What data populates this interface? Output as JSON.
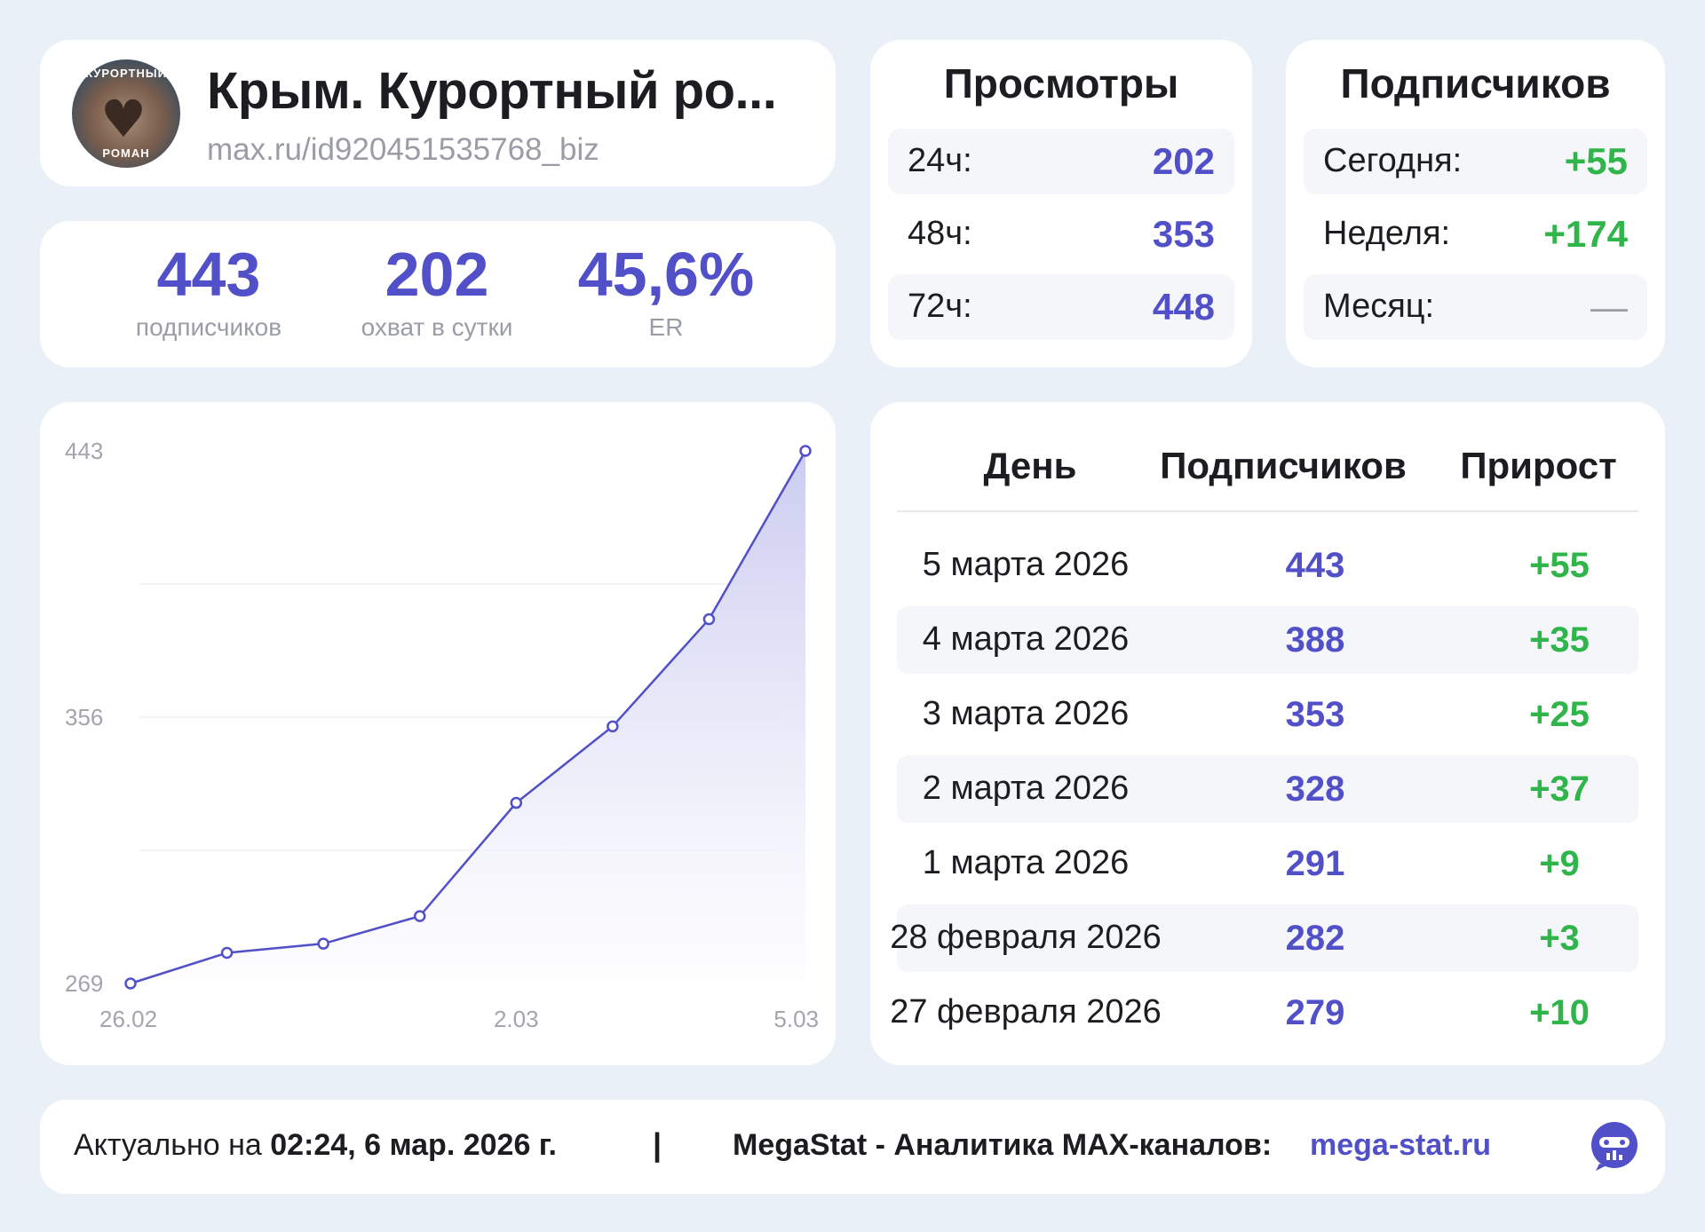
{
  "profile": {
    "title": "Крым. Курортный ро...",
    "url": "max.ru/id920451535768_biz",
    "avatar_text_top": "КУРОРТНЫЙ",
    "avatar_text_bottom": "РОМАН"
  },
  "stats": [
    {
      "value": "443",
      "label": "подписчиков"
    },
    {
      "value": "202",
      "label": "охват в сутки"
    },
    {
      "value": "45,6%",
      "label": "ER"
    }
  ],
  "views": {
    "title": "Просмотры",
    "rows": [
      {
        "label": "24ч:",
        "value": "202"
      },
      {
        "label": "48ч:",
        "value": "353"
      },
      {
        "label": "72ч:",
        "value": "448"
      }
    ]
  },
  "subs": {
    "title": "Подписчиков",
    "rows": [
      {
        "label": "Сегодня:",
        "value": "+55"
      },
      {
        "label": "Неделя:",
        "value": "+174"
      },
      {
        "label": "Месяц:",
        "value": "—"
      }
    ]
  },
  "chart_data": {
    "type": "area",
    "x": [
      "26.02",
      "27.02",
      "28.02",
      "1.03",
      "2.03",
      "3.03",
      "4.03",
      "5.03"
    ],
    "values": [
      269,
      279,
      282,
      291,
      328,
      353,
      388,
      443
    ],
    "ylim": [
      269,
      443
    ],
    "y_ticks": [
      "443",
      "356",
      "269"
    ],
    "x_tick_labels": [
      "26.02",
      "2.03",
      "5.03"
    ],
    "grid": true,
    "colors": {
      "line": "#5250c8",
      "fill_top": "#c9c9f0",
      "fill_bottom": "#ffffff"
    }
  },
  "table": {
    "headers": [
      "День",
      "Подписчиков",
      "Прирост"
    ],
    "rows": [
      {
        "day": "5 марта 2026",
        "subs": "443",
        "delta": "+55"
      },
      {
        "day": "4 марта 2026",
        "subs": "388",
        "delta": "+35"
      },
      {
        "day": "3 марта 2026",
        "subs": "353",
        "delta": "+25"
      },
      {
        "day": "2 марта 2026",
        "subs": "328",
        "delta": "+37"
      },
      {
        "day": "1 марта 2026",
        "subs": "291",
        "delta": "+9"
      },
      {
        "day": "28 февраля 2026",
        "subs": "282",
        "delta": "+3"
      },
      {
        "day": "27 февраля 2026",
        "subs": "279",
        "delta": "+10"
      }
    ]
  },
  "footer": {
    "prefix": "Актуально на ",
    "timestamp": "02:24, 6 мар. 2026 г.",
    "separator": "|",
    "brand": "MegaStat - Аналитика MAX-каналов:",
    "link": "mega-stat.ru"
  },
  "colors": {
    "accent": "#5250c8",
    "positive": "#2fb54a",
    "background": "#eaf0f8"
  }
}
